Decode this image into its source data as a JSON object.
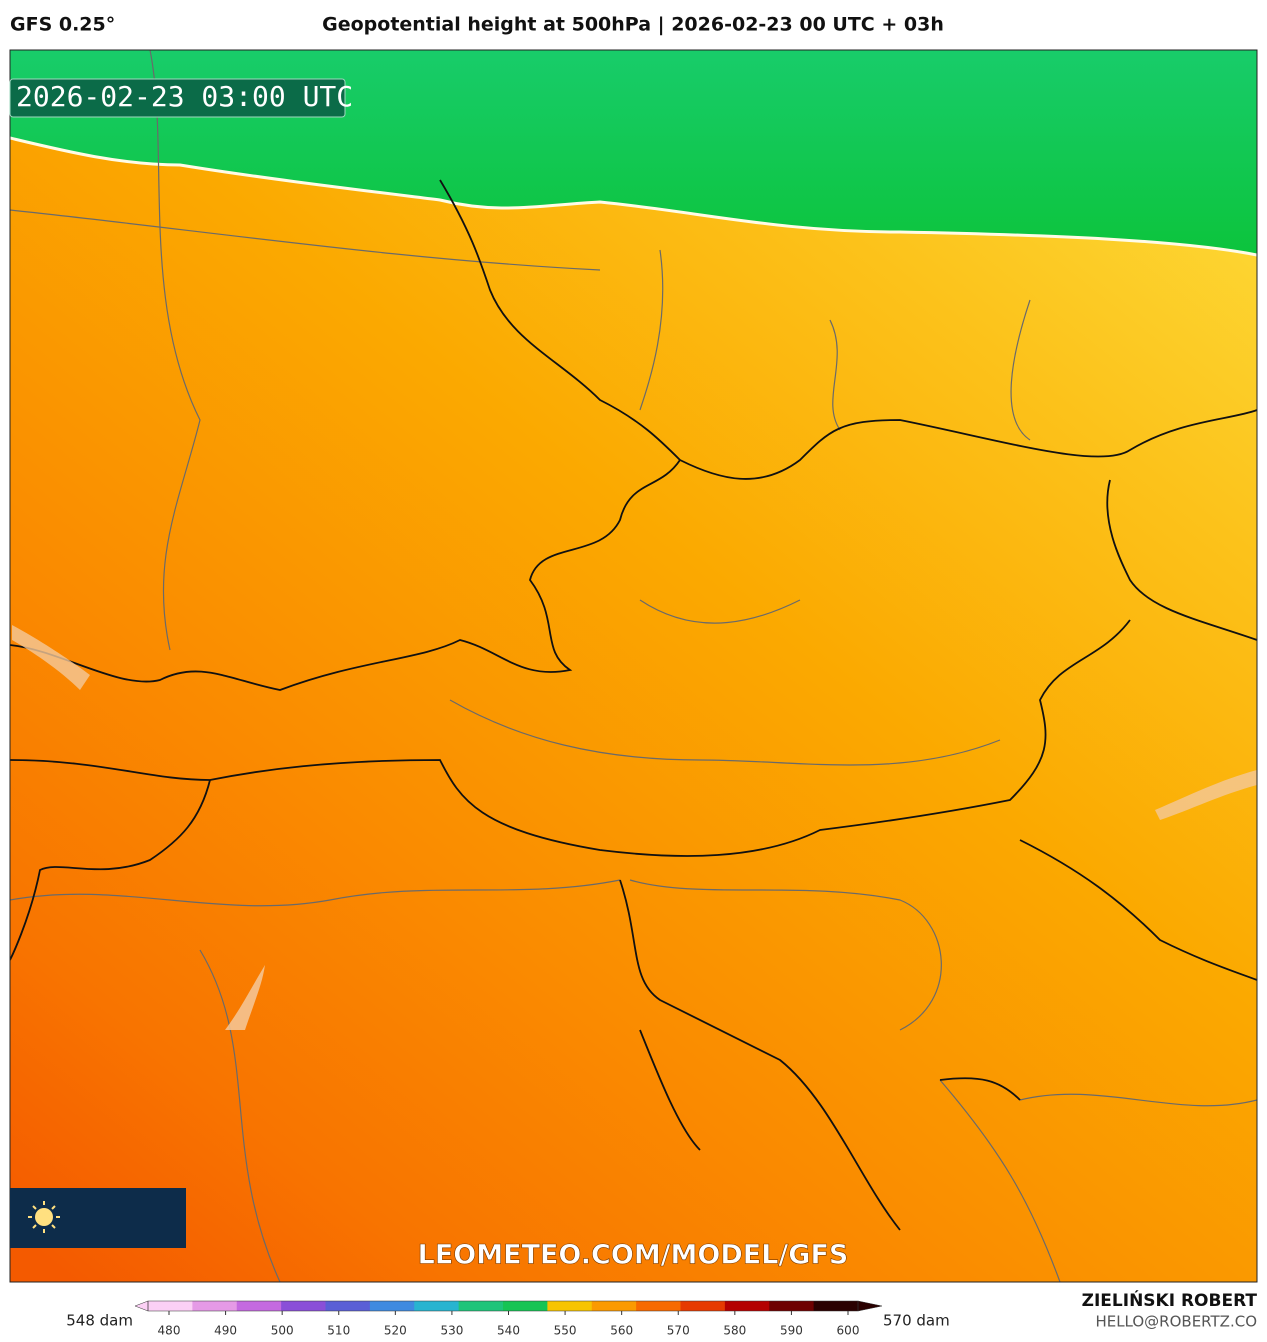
{
  "header": {
    "model": "GFS 0.25°",
    "title": "Geopotential height at 500hPa | 2026-02-23 00 UTC + 03h"
  },
  "map": {
    "timestamp": "2026-02-23 03:00 UTC",
    "watermark": "LEOMETEO.COM/MODEL/GFS"
  },
  "colorbar": {
    "min_label": "548 dam",
    "max_label": "570 dam",
    "ticks": [
      480,
      490,
      500,
      510,
      520,
      530,
      540,
      550,
      560,
      570,
      580,
      590,
      600
    ],
    "colors": [
      "#fbd0f5",
      "#e59ae6",
      "#c46ae0",
      "#8a4fd8",
      "#5a5fd6",
      "#3f8ae0",
      "#28b4d0",
      "#1fc47a",
      "#16c454",
      "#f7c400",
      "#fb9a00",
      "#f76a00",
      "#e63a00",
      "#b40000",
      "#6e0000",
      "#2a0000"
    ]
  },
  "footer": {
    "author": "ZIELIŃSKI ROBERT",
    "email": "HELLO@ROBERTZ.CO"
  }
}
